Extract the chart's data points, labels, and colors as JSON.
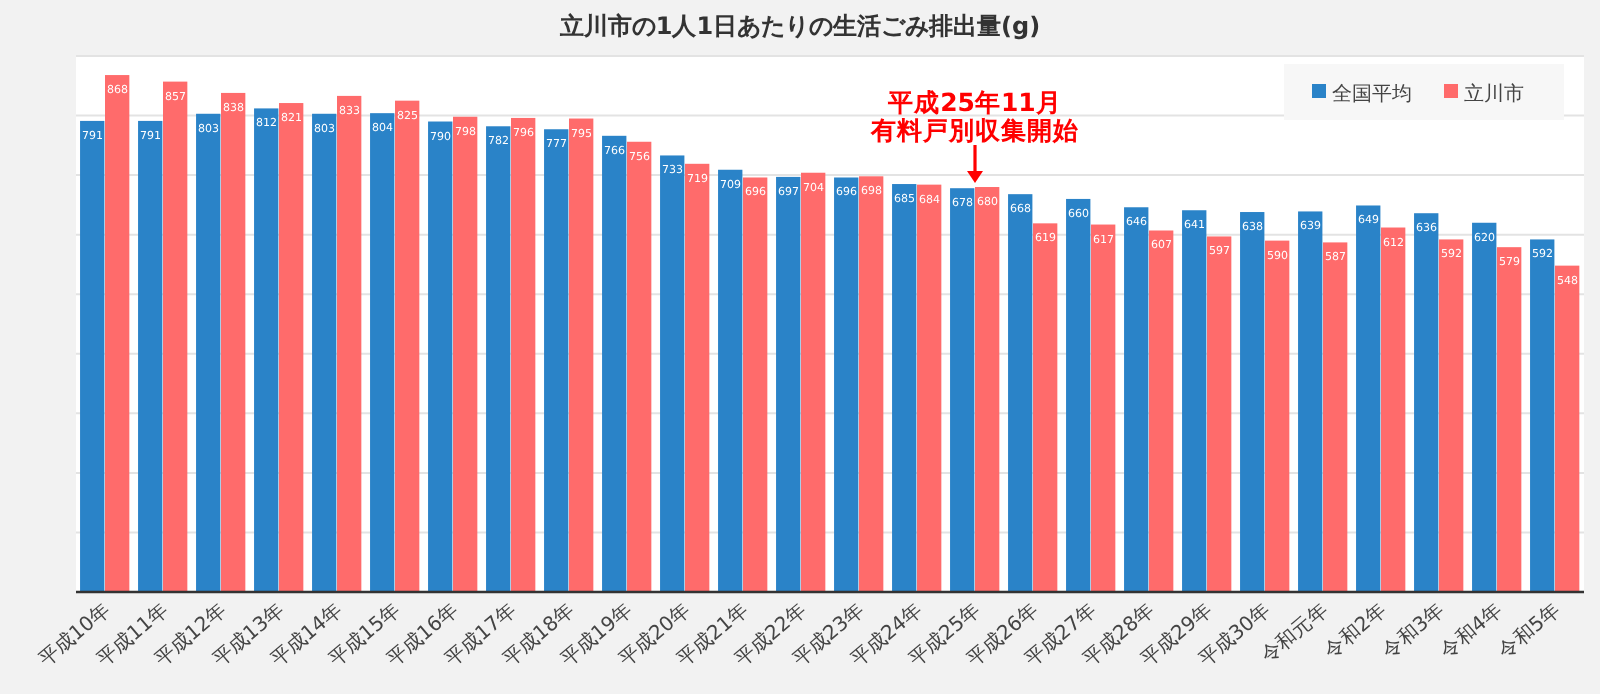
{
  "chart_data": {
    "type": "bar",
    "title": "立川市の1人1日あたりの生活ごみ排出量(g)",
    "categories": [
      "平成10年",
      "平成11年",
      "平成12年",
      "平成13年",
      "平成14年",
      "平成15年",
      "平成16年",
      "平成17年",
      "平成18年",
      "平成19年",
      "平成20年",
      "平成21年",
      "平成22年",
      "平成23年",
      "平成24年",
      "平成25年",
      "平成26年",
      "平成27年",
      "平成28年",
      "平成29年",
      "平成30年",
      "令和元年",
      "令和2年",
      "令和3年",
      "令和4年",
      "令和5年"
    ],
    "series": [
      {
        "name": "全国平均",
        "color": "#2a83c8",
        "values": [
          791,
          791,
          803,
          812,
          803,
          804,
          790,
          782,
          777,
          766,
          733,
          709,
          697,
          696,
          685,
          678,
          668,
          660,
          646,
          641,
          638,
          639,
          649,
          636,
          620,
          592
        ]
      },
      {
        "name": "立川市",
        "color": "#ff6b6b",
        "values": [
          868,
          857,
          838,
          821,
          833,
          825,
          798,
          796,
          795,
          756,
          719,
          696,
          704,
          698,
          684,
          680,
          619,
          617,
          607,
          597,
          590,
          587,
          612,
          592,
          579,
          548
        ]
      }
    ],
    "ylim": [
      0,
      900
    ],
    "yticks": [
      {
        "value": 0,
        "label": null
      },
      {
        "value": 100,
        "label": null
      },
      {
        "value": 200,
        "label": null
      },
      {
        "value": 300,
        "label": null
      },
      {
        "value": 400,
        "label": null
      },
      {
        "value": 500,
        "label": null
      },
      {
        "value": 600,
        "label": null
      },
      {
        "value": 700,
        "label": null
      },
      {
        "value": 800,
        "label": null
      },
      {
        "value": 900,
        "label": null
      }
    ],
    "tick_labels": "x",
    "grid": "y",
    "data_labels": true,
    "legend": "top right",
    "annotations": [
      {
        "text": "平成25年11月",
        "x": "平成25年",
        "y": 680
      },
      {
        "text": "有料戸別収集開始",
        "x": "平成25年",
        "y": 680
      }
    ]
  }
}
